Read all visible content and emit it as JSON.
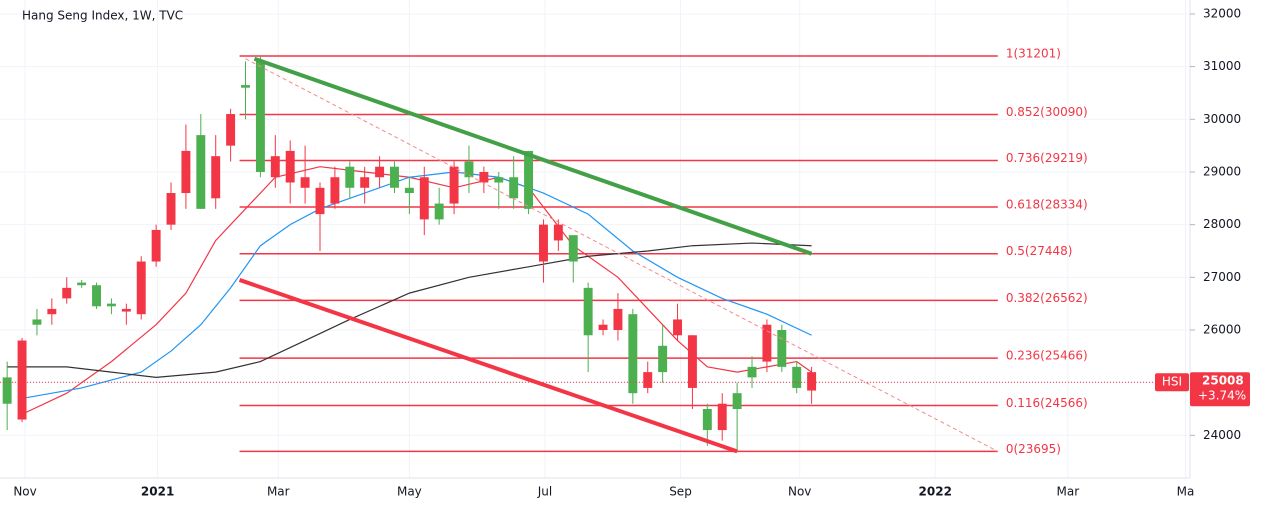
{
  "chart_data": {
    "type": "candlestick",
    "title": "Hang Seng Index, 1W, TVC",
    "xlim": [
      -1.48,
      78.4
    ],
    "xticks": [
      {
        "value": 0.2,
        "label": "Nov"
      },
      {
        "value": 9.1,
        "label": "2021"
      },
      {
        "value": 17.2,
        "label": "Mar"
      },
      {
        "value": 26,
        "label": "May"
      },
      {
        "value": 35.1,
        "label": "Jul"
      },
      {
        "value": 44.2,
        "label": "Sep"
      },
      {
        "value": 52.2,
        "label": "Nov"
      },
      {
        "value": 61.3,
        "label": "2022"
      },
      {
        "value": 70.2,
        "label": "Mar"
      },
      {
        "value": 78.1,
        "label": "Ma"
      }
    ],
    "ylim": [
      23190,
      32265
    ],
    "yticks": [
      24000,
      25000,
      26000,
      27000,
      28000,
      29000,
      30000,
      31000,
      32000
    ],
    "up_color": "#4caf50",
    "down_color": "#f23645",
    "x": [
      -1,
      0,
      1,
      2,
      3,
      4,
      5,
      6,
      7,
      8,
      9,
      10,
      11,
      12,
      13,
      14,
      15,
      16,
      17,
      18,
      19,
      20,
      21,
      22,
      23,
      24,
      25,
      26,
      27,
      28,
      29,
      30,
      31,
      32,
      33,
      34,
      35,
      36,
      37,
      38,
      39,
      40,
      41,
      42,
      43,
      44,
      45,
      46,
      47,
      48,
      49,
      50,
      51,
      52,
      53
    ],
    "open": [
      24600,
      25800,
      26100,
      26400,
      26800,
      26850,
      26450,
      26450,
      26400,
      27300,
      27900,
      28600,
      29400,
      28300,
      29300,
      30100,
      30600,
      29000,
      29300,
      29400,
      28900,
      28700,
      28900,
      28700,
      28900,
      29100,
      28700,
      28600,
      28900,
      28100,
      29100,
      28900,
      29000,
      28800,
      28500,
      28300,
      28000,
      28000,
      27300,
      25900,
      26100,
      26400,
      24800,
      25200,
      25200,
      26200,
      25900,
      24100,
      24600,
      24500,
      25100,
      26100,
      25300,
      24900,
      25200
    ],
    "high": [
      25400,
      25850,
      26400,
      26600,
      27000,
      26950,
      26900,
      26600,
      26500,
      27400,
      28000,
      28800,
      29900,
      30100,
      29700,
      30200,
      31100,
      31200,
      29700,
      29600,
      29500,
      28800,
      29100,
      29200,
      29100,
      29300,
      29200,
      28900,
      29100,
      28700,
      29200,
      29500,
      29100,
      29000,
      29300,
      29400,
      28100,
      28100,
      27800,
      26900,
      26200,
      26700,
      26400,
      25400,
      26100,
      26500,
      25900,
      24600,
      24800,
      25000,
      25500,
      26200,
      26100,
      25400,
      25300
    ],
    "low": [
      24100,
      24250,
      25900,
      26100,
      26500,
      26800,
      26400,
      26300,
      26100,
      26200,
      27200,
      27900,
      28300,
      28300,
      28300,
      29200,
      30000,
      28900,
      28700,
      28400,
      28400,
      27500,
      28300,
      28500,
      28400,
      28700,
      28600,
      28200,
      27800,
      28000,
      28200,
      28600,
      28600,
      28300,
      28300,
      28200,
      26900,
      27500,
      26900,
      25200,
      25900,
      25800,
      24600,
      24800,
      25000,
      25800,
      24500,
      23800,
      23900,
      23700,
      24900,
      25200,
      25200,
      24800,
      24600
    ],
    "close": [
      25100,
      24300,
      26200,
      26300,
      26600,
      26900,
      26850,
      26500,
      26350,
      26300,
      27300,
      28000,
      28600,
      29700,
      28500,
      29500,
      30650,
      31100,
      28900,
      28800,
      28700,
      28200,
      28400,
      29100,
      28700,
      28900,
      29100,
      28700,
      28100,
      28400,
      28400,
      29200,
      28800,
      28900,
      28900,
      29400,
      27300,
      27700,
      27800,
      26800,
      26000,
      26000,
      26300,
      24900,
      25700,
      25900,
      24900,
      24500,
      24100,
      24800,
      25300,
      25400,
      26000,
      25300,
      24850
    ],
    "series": [
      {
        "color": "#f23645",
        "x": [
          0,
          3,
          6,
          9,
          11,
          13,
          15,
          17,
          20,
          23,
          26,
          29,
          32,
          34,
          37,
          40,
          42,
          44,
          46,
          48,
          50,
          52,
          53
        ],
        "values": [
          24400,
          24800,
          25400,
          26100,
          26700,
          27700,
          28300,
          28900,
          29100,
          29000,
          28900,
          28700,
          28900,
          28700,
          27600,
          27000,
          26400,
          25800,
          25300,
          25200,
          25300,
          25400,
          25200
        ]
      },
      {
        "color": "#2196f3",
        "x": [
          0,
          4,
          8,
          10,
          12,
          14,
          16,
          18,
          20,
          23,
          26,
          29,
          32,
          35,
          38,
          41,
          44,
          47,
          50,
          53
        ],
        "values": [
          24700,
          24900,
          25200,
          25600,
          26100,
          26800,
          27600,
          28000,
          28300,
          28600,
          28900,
          29000,
          28900,
          28600,
          28200,
          27500,
          27000,
          26600,
          26300,
          25900
        ]
      },
      {
        "color": "#333333",
        "x": [
          -1,
          3,
          6,
          9,
          13,
          16,
          19,
          22,
          26,
          30,
          34,
          38,
          42,
          45,
          49,
          53
        ],
        "values": [
          25300,
          25300,
          25200,
          25100,
          25200,
          25400,
          25800,
          26200,
          26700,
          27000,
          27200,
          27400,
          27500,
          27600,
          27650,
          27600
        ]
      }
    ],
    "fib": {
      "color": "#f23645",
      "x": [
        14.6,
        65.5
      ],
      "levels": [
        31201,
        30090,
        29219,
        28334,
        27448,
        26562,
        25466,
        24566,
        23695
      ],
      "labels": [
        "1(31201)",
        "0.852(30090)",
        "0.736(29219)",
        "0.618(28334)",
        "0.5(27448)",
        "0.382(26562)",
        "0.236(25466)",
        "0.116(24566)",
        "0(23695)"
      ]
    },
    "trendlines": [
      {
        "color": "#43a047",
        "x": [
          15.6,
          53
        ],
        "values": [
          31150,
          27448
        ]
      },
      {
        "color": "#f23645",
        "x": [
          14.6,
          48
        ],
        "values": [
          26950,
          23695
        ]
      },
      {
        "color": "#f48a8a",
        "dashed": true,
        "x": [
          15,
          65.5
        ],
        "values": [
          31150,
          23695
        ]
      }
    ],
    "price_tag": {
      "symbol": "HSI",
      "value": 25008,
      "change": "+3.74%",
      "color": "#f23645"
    }
  }
}
